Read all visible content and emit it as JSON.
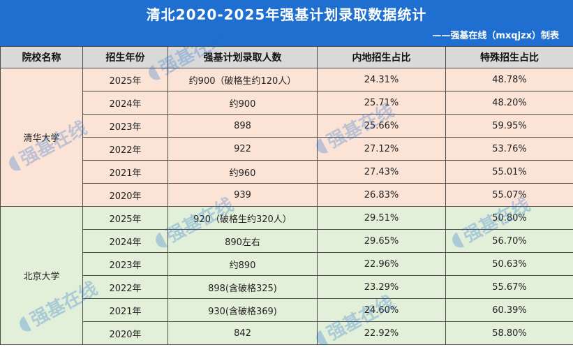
{
  "header": {
    "title": "清北2020-2025年强基计划录取数据统计",
    "credit": "——强基在线（mxqjzx）制表"
  },
  "table": {
    "columns": [
      "院校名称",
      "招生年份",
      "强基计划录取人数",
      "内地招生占比",
      "特殊招生占比"
    ],
    "groups": [
      {
        "school": "清华大学",
        "rows": [
          {
            "year": "2025年",
            "admitted": "约900（破格生约120人）",
            "mainland": "24.31%",
            "special": "48.78%"
          },
          {
            "year": "2024年",
            "admitted": "约900",
            "mainland": "25.71%",
            "special": "48.20%"
          },
          {
            "year": "2023年",
            "admitted": "898",
            "mainland": "25.66%",
            "special": "59.95%"
          },
          {
            "year": "2022年",
            "admitted": "922",
            "mainland": "27.12%",
            "special": "53.76%"
          },
          {
            "year": "2021年",
            "admitted": "约960",
            "mainland": "27.43%",
            "special": "55.01%"
          },
          {
            "year": "2020年",
            "admitted": "939",
            "mainland": "26.83%",
            "special": "55.07%"
          }
        ]
      },
      {
        "school": "北京大学",
        "rows": [
          {
            "year": "2025年",
            "admitted": "920（破格生约320人）",
            "mainland": "29.51%",
            "special": "50.80%"
          },
          {
            "year": "2024年",
            "admitted": "890左右",
            "mainland": "29.65%",
            "special": "56.70%"
          },
          {
            "year": "2023年",
            "admitted": "约890",
            "mainland": "22.96%",
            "special": "50.63%"
          },
          {
            "year": "2022年",
            "admitted": "898(含破格325)",
            "mainland": "23.29%",
            "special": "55.67%"
          },
          {
            "year": "2021年",
            "admitted": "930(含破格369)",
            "mainland": "24.60%",
            "special": "60.39%"
          },
          {
            "year": "2020年",
            "admitted": "842",
            "mainland": "22.92%",
            "special": "58.80%"
          }
        ]
      }
    ]
  },
  "watermark": {
    "text": "强基在线",
    "color": "#1e6fcf"
  }
}
